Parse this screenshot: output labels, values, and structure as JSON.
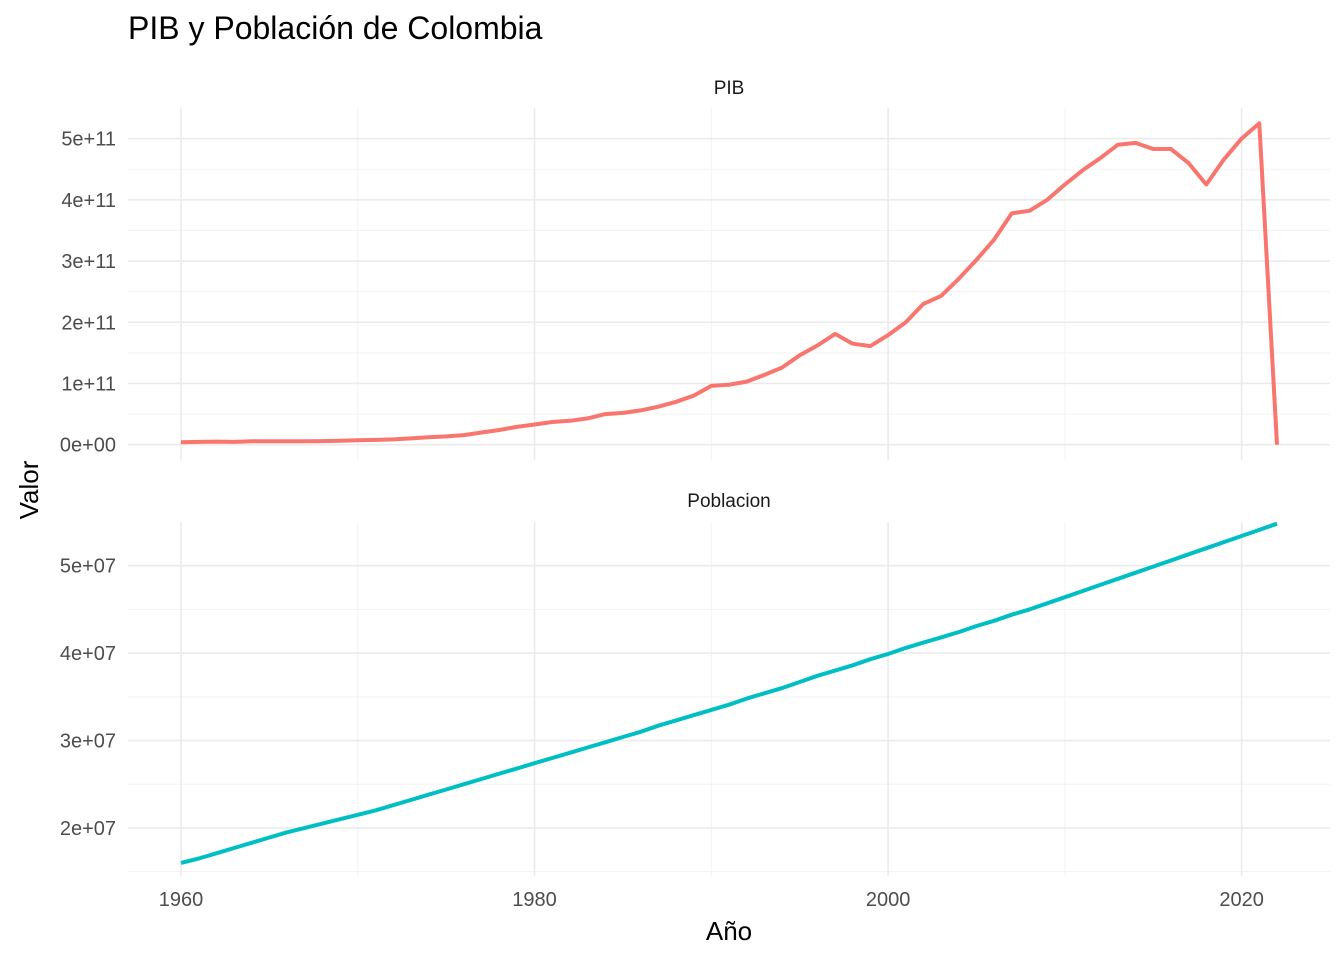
{
  "chart_data": {
    "type": "line",
    "title": "PIB y Población de Colombia",
    "xlabel": "Año",
    "ylabel": "Valor",
    "xlim": [
      1957,
      2025
    ],
    "x_ticks": [
      1960,
      1980,
      2000,
      2020
    ],
    "x_tick_labels": [
      "1960",
      "1980",
      "2000",
      "2020"
    ],
    "grid": true,
    "legend": "none",
    "facets": [
      {
        "name": "PIB",
        "color": "#F8766D",
        "ylim": [
          -25000000000.0,
          550000000000.0
        ],
        "y_ticks": [
          0,
          100000000000.0,
          200000000000.0,
          300000000000.0,
          400000000000.0,
          500000000000.0
        ],
        "y_tick_labels": [
          "0e+00",
          "1e+11",
          "2e+11",
          "3e+11",
          "4e+11",
          "5e+11"
        ],
        "x": [
          1960,
          1961,
          1962,
          1963,
          1964,
          1965,
          1966,
          1967,
          1968,
          1969,
          1970,
          1971,
          1972,
          1973,
          1974,
          1975,
          1976,
          1977,
          1978,
          1979,
          1980,
          1981,
          1982,
          1983,
          1984,
          1985,
          1986,
          1987,
          1988,
          1989,
          1990,
          1991,
          1992,
          1993,
          1994,
          1995,
          1996,
          1997,
          1998,
          1999,
          2000,
          2001,
          2002,
          2003,
          2004,
          2005,
          2006,
          2007,
          2008,
          2009,
          2010,
          2011,
          2012,
          2013,
          2014,
          2015,
          2016,
          2017,
          2018,
          2019,
          2020,
          2021,
          2022
        ],
        "values": [
          4000000000.0,
          4500000000.0,
          5000000000.0,
          4500000000.0,
          5500000000.0,
          5500000000.0,
          5500000000.0,
          5700000000.0,
          5900000000.0,
          6400000000.0,
          7200000000.0,
          7800000000.0,
          8700000000.0,
          10300000000.0,
          12300000000.0,
          13500000000.0,
          15600000000.0,
          20000000000.0,
          24000000000.0,
          29000000000.0,
          33000000000.0,
          37000000000.0,
          39000000000.0,
          43000000000.0,
          50000000000.0,
          52000000000.0,
          56000000000.0,
          62000000000.0,
          70000000000.0,
          80000000000.0,
          96000000000.0,
          98000000000.0,
          103000000000.0,
          114000000000.0,
          126000000000.0,
          146000000000.0,
          162000000000.0,
          181000000000.0,
          165000000000.0,
          161000000000.0,
          179000000000.0,
          200000000000.0,
          230000000000.0,
          243000000000.0,
          271000000000.0,
          302000000000.0,
          335000000000.0,
          378000000000.0,
          382000000000.0,
          400000000000.0,
          425000000000.0,
          448000000000.0,
          468000000000.0,
          490000000000.0,
          493000000000.0,
          483000000000.0,
          483000000000.0,
          460000000000.0,
          425000000000.0,
          466000000000.0,
          500000000000.0,
          525000000000.0,
          0
        ]
      },
      {
        "name": "Poblacion",
        "color": "#00BFC4",
        "ylim": [
          14500000.0,
          55000000.0
        ],
        "y_ticks": [
          20000000.0,
          30000000.0,
          40000000.0,
          50000000.0
        ],
        "y_tick_labels": [
          "2e+07",
          "3e+07",
          "4e+07",
          "5e+07"
        ],
        "x": [
          1960,
          1961,
          1962,
          1963,
          1964,
          1965,
          1966,
          1967,
          1968,
          1969,
          1970,
          1971,
          1972,
          1973,
          1974,
          1975,
          1976,
          1977,
          1978,
          1979,
          1980,
          1981,
          1982,
          1983,
          1984,
          1985,
          1986,
          1987,
          1988,
          1989,
          1990,
          1991,
          1992,
          1993,
          1994,
          1995,
          1996,
          1997,
          1998,
          1999,
          2000,
          2001,
          2002,
          2003,
          2004,
          2005,
          2006,
          2007,
          2008,
          2009,
          2010,
          2011,
          2012,
          2013,
          2014,
          2015,
          2016,
          2017,
          2018,
          2019,
          2020,
          2021,
          2022
        ],
        "values": [
          16000000.0,
          16500000.0,
          17100000.0,
          17700000.0,
          18300000.0,
          18900000.0,
          19500000.0,
          20000000.0,
          20500000.0,
          21000000.0,
          21500000.0,
          22000000.0,
          22600000.0,
          23200000.0,
          23800000.0,
          24400000.0,
          25000000.0,
          25600000.0,
          26200000.0,
          26800000.0,
          27400000.0,
          28000000.0,
          28600000.0,
          29200000.0,
          29800000.0,
          30400000.0,
          31000000.0,
          31700000.0,
          32300000.0,
          32900000.0,
          33500000.0,
          34100000.0,
          34800000.0,
          35400000.0,
          36000000.0,
          36700000.0,
          37400000.0,
          38000000.0,
          38600000.0,
          39300000.0,
          39900000.0,
          40600000.0,
          41200000.0,
          41800000.0,
          42400000.0,
          43100000.0,
          43700000.0,
          44400000.0,
          45000000.0,
          45700000.0,
          46400000.0,
          47100000.0,
          47800000.0,
          48500000.0,
          49200000.0,
          49900000.0,
          50600000.0,
          51300000.0,
          52000000.0,
          52700000.0,
          53400000.0,
          54100000.0,
          54800000.0
        ]
      }
    ]
  }
}
